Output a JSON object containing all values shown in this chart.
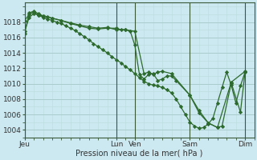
{
  "background_color": "#cce8f0",
  "grid_color_major": "#aacccc",
  "grid_color_minor": "#bbdddd",
  "line_color": "#2d6a2d",
  "marker_color": "#2d6a2d",
  "xlabel": "Pression niveau de la mer( hPa )",
  "ylim": [
    1003.0,
    1020.5
  ],
  "yticks": [
    1004,
    1006,
    1008,
    1010,
    1012,
    1014,
    1016,
    1018
  ],
  "xtick_labels": [
    "Jeu",
    "Lun",
    "Ven",
    "Sam",
    "Dim"
  ],
  "xtick_positions": [
    0,
    60,
    72,
    108,
    144
  ],
  "total_xrange": [
    0,
    150
  ],
  "series": [
    [
      [
        0,
        1016.5
      ],
      [
        3,
        1019.2
      ],
      [
        6,
        1019.4
      ],
      [
        9,
        1019.1
      ],
      [
        12,
        1018.8
      ],
      [
        15,
        1018.7
      ],
      [
        18,
        1018.5
      ],
      [
        24,
        1018.2
      ],
      [
        30,
        1017.8
      ],
      [
        36,
        1017.5
      ],
      [
        42,
        1017.2
      ],
      [
        48,
        1017.1
      ],
      [
        54,
        1017.2
      ],
      [
        60,
        1017.2
      ],
      [
        63,
        1017.0
      ],
      [
        66,
        1017.0
      ],
      [
        69,
        1016.8
      ],
      [
        72,
        1015.0
      ],
      [
        75,
        1011.2
      ],
      [
        78,
        1010.6
      ],
      [
        81,
        1011.2
      ],
      [
        84,
        1011.3
      ],
      [
        87,
        1010.4
      ],
      [
        90,
        1010.6
      ],
      [
        93,
        1011.0
      ],
      [
        96,
        1011.0
      ],
      [
        99,
        1010.4
      ],
      [
        108,
        1008.5
      ],
      [
        114,
        1006.2
      ],
      [
        120,
        1004.9
      ],
      [
        126,
        1004.3
      ],
      [
        129,
        1004.5
      ],
      [
        135,
        1010.1
      ],
      [
        141,
        1006.3
      ],
      [
        144,
        1011.5
      ]
    ],
    [
      [
        0,
        1018.2
      ],
      [
        3,
        1019.0
      ],
      [
        6,
        1019.3
      ],
      [
        9,
        1018.9
      ],
      [
        12,
        1018.6
      ],
      [
        15,
        1018.4
      ],
      [
        18,
        1018.2
      ],
      [
        21,
        1018.0
      ],
      [
        24,
        1017.8
      ],
      [
        27,
        1017.5
      ],
      [
        30,
        1017.2
      ],
      [
        33,
        1016.9
      ],
      [
        36,
        1016.5
      ],
      [
        39,
        1016.1
      ],
      [
        42,
        1015.7
      ],
      [
        45,
        1015.2
      ],
      [
        48,
        1014.8
      ],
      [
        51,
        1014.4
      ],
      [
        54,
        1014.0
      ],
      [
        57,
        1013.5
      ],
      [
        60,
        1013.1
      ],
      [
        63,
        1012.7
      ],
      [
        66,
        1012.2
      ],
      [
        69,
        1011.8
      ],
      [
        72,
        1011.3
      ],
      [
        75,
        1010.8
      ],
      [
        78,
        1010.3
      ],
      [
        81,
        1010.0
      ],
      [
        84,
        1009.8
      ],
      [
        87,
        1009.7
      ],
      [
        90,
        1009.5
      ],
      [
        93,
        1009.2
      ],
      [
        96,
        1008.8
      ],
      [
        99,
        1008.0
      ],
      [
        102,
        1007.0
      ],
      [
        105,
        1006.0
      ],
      [
        108,
        1005.0
      ],
      [
        111,
        1004.5
      ],
      [
        114,
        1004.2
      ],
      [
        117,
        1004.3
      ],
      [
        120,
        1004.8
      ],
      [
        123,
        1005.5
      ],
      [
        126,
        1007.5
      ],
      [
        129,
        1009.5
      ],
      [
        132,
        1011.5
      ],
      [
        135,
        1009.8
      ],
      [
        138,
        1007.5
      ],
      [
        141,
        1009.7
      ],
      [
        144,
        1011.5
      ]
    ],
    [
      [
        0,
        1016.8
      ],
      [
        3,
        1018.6
      ],
      [
        6,
        1019.1
      ],
      [
        9,
        1018.9
      ],
      [
        12,
        1018.8
      ],
      [
        18,
        1018.5
      ],
      [
        24,
        1018.2
      ],
      [
        30,
        1017.9
      ],
      [
        36,
        1017.6
      ],
      [
        42,
        1017.4
      ],
      [
        48,
        1017.2
      ],
      [
        54,
        1017.3
      ],
      [
        60,
        1017.0
      ],
      [
        66,
        1017.0
      ],
      [
        72,
        1016.8
      ],
      [
        78,
        1011.3
      ],
      [
        81,
        1011.5
      ],
      [
        84,
        1011.2
      ],
      [
        87,
        1011.5
      ],
      [
        90,
        1011.6
      ],
      [
        96,
        1011.3
      ],
      [
        108,
        1008.5
      ],
      [
        114,
        1006.5
      ],
      [
        120,
        1004.9
      ],
      [
        126,
        1004.3
      ],
      [
        135,
        1010.2
      ],
      [
        144,
        1011.6
      ]
    ]
  ]
}
